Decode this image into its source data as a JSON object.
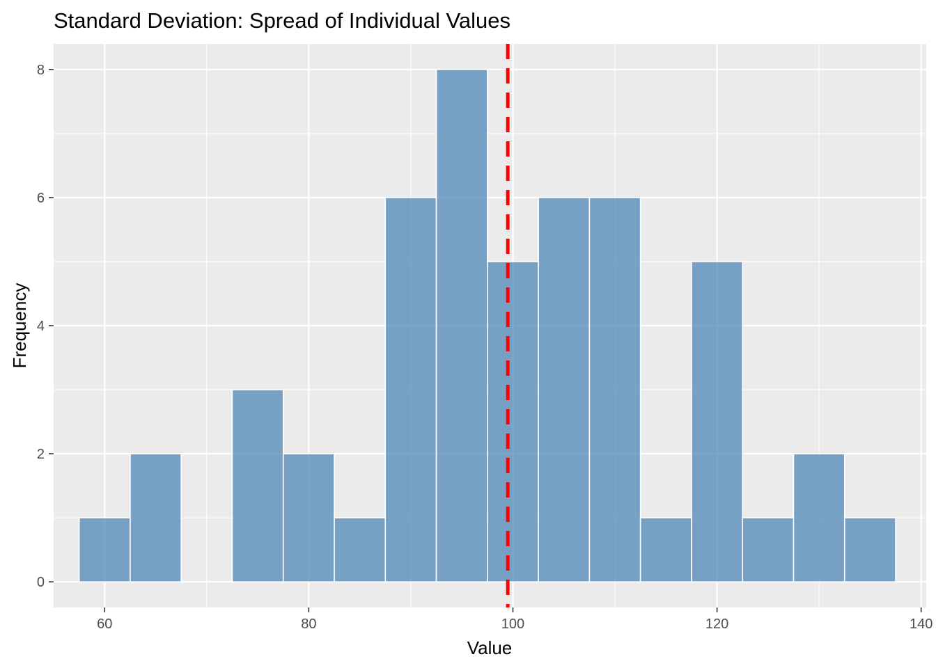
{
  "chart_data": {
    "type": "bar",
    "title": "Standard Deviation: Spread of Individual Values",
    "xlabel": "Value",
    "ylabel": "Frequency",
    "bin_width": 5,
    "bins": [
      {
        "start": 57.5,
        "end": 62.5,
        "count": 1
      },
      {
        "start": 62.5,
        "end": 67.5,
        "count": 2
      },
      {
        "start": 67.5,
        "end": 72.5,
        "count": 0
      },
      {
        "start": 72.5,
        "end": 77.5,
        "count": 3
      },
      {
        "start": 77.5,
        "end": 82.5,
        "count": 2
      },
      {
        "start": 82.5,
        "end": 87.5,
        "count": 1
      },
      {
        "start": 87.5,
        "end": 92.5,
        "count": 6
      },
      {
        "start": 92.5,
        "end": 97.5,
        "count": 8
      },
      {
        "start": 97.5,
        "end": 102.5,
        "count": 5
      },
      {
        "start": 102.5,
        "end": 107.5,
        "count": 6
      },
      {
        "start": 107.5,
        "end": 112.5,
        "count": 6
      },
      {
        "start": 112.5,
        "end": 117.5,
        "count": 1
      },
      {
        "start": 117.5,
        "end": 122.5,
        "count": 5
      },
      {
        "start": 122.5,
        "end": 127.5,
        "count": 1
      },
      {
        "start": 127.5,
        "end": 132.5,
        "count": 2
      },
      {
        "start": 132.5,
        "end": 137.5,
        "count": 1
      }
    ],
    "mean_line": {
      "x": 99.5,
      "color": "#ff0000",
      "style": "dashed"
    },
    "xlim": [
      55.0,
      140.5
    ],
    "ylim": [
      -0.4,
      8.4
    ],
    "x_ticks": [
      60,
      80,
      100,
      120,
      140
    ],
    "x_minor_ticks": [
      70,
      90,
      110,
      130
    ],
    "y_ticks": [
      0,
      2,
      4,
      6,
      8
    ],
    "y_minor_ticks": [
      1,
      3,
      5,
      7
    ],
    "grid": true,
    "colors": {
      "bar_fill": "#4682b4",
      "bar_opacity": 0.7,
      "bar_border": "#ffffff",
      "panel_background": "#ebebeb",
      "grid": "#ffffff",
      "tick_text": "#4d4d4d",
      "tick_mark": "#333333"
    }
  }
}
